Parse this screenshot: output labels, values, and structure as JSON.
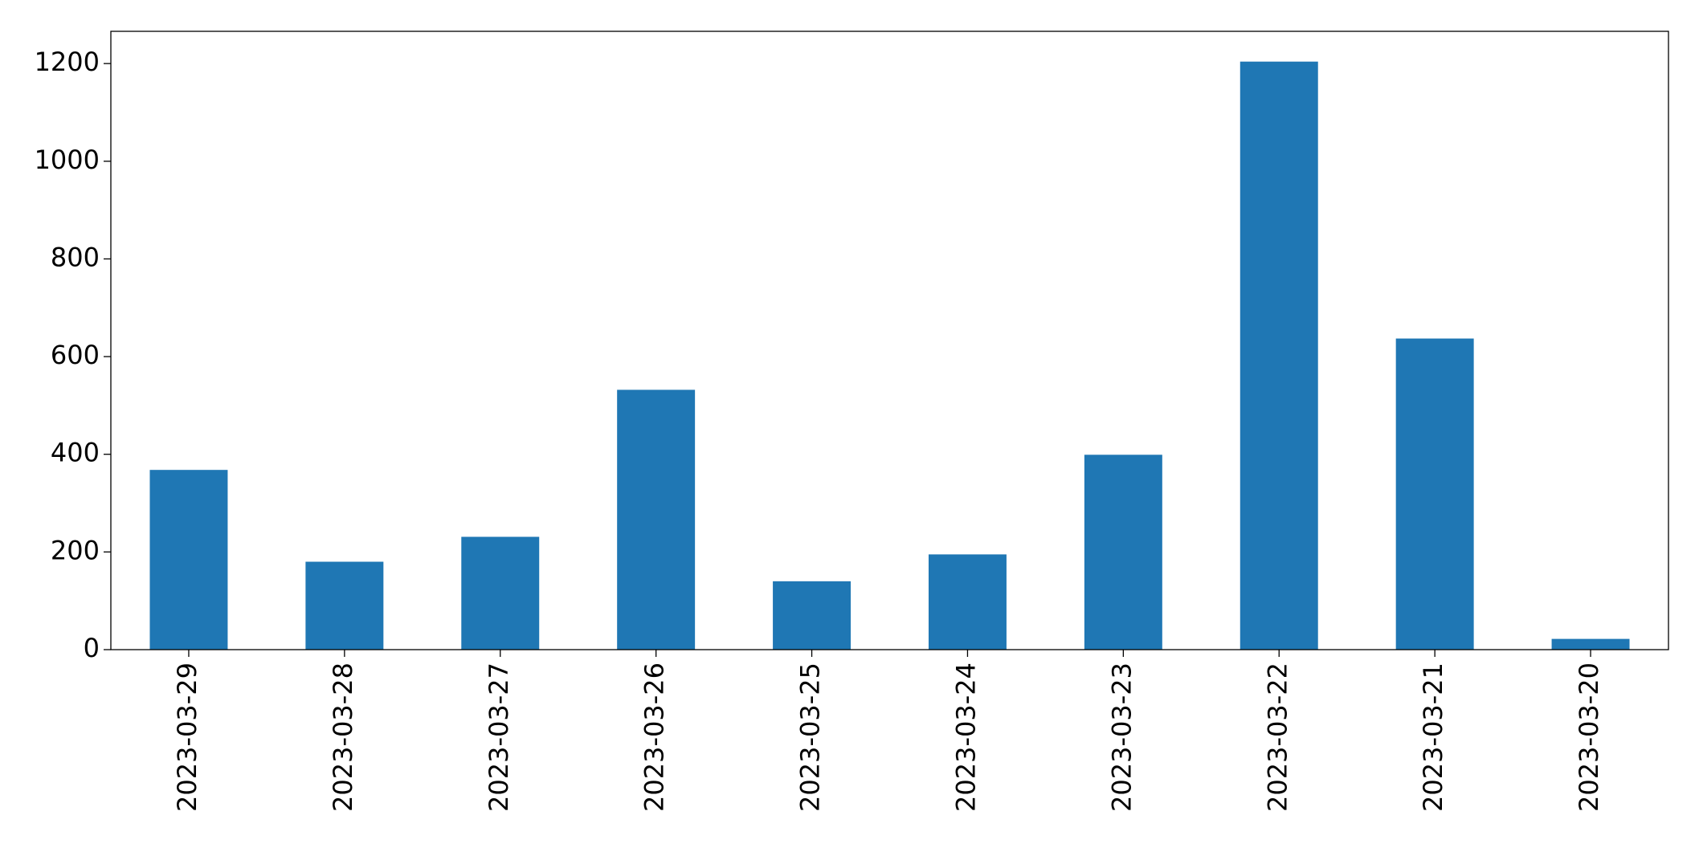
{
  "chart_data": {
    "type": "bar",
    "categories": [
      "2023-03-29",
      "2023-03-28",
      "2023-03-27",
      "2023-03-26",
      "2023-03-25",
      "2023-03-24",
      "2023-03-23",
      "2023-03-22",
      "2023-03-21",
      "2023-03-20"
    ],
    "values": [
      368,
      180,
      231,
      532,
      140,
      195,
      399,
      1204,
      637,
      22
    ],
    "color": "#1f77b4",
    "ylim": [
      0,
      1266
    ],
    "yticks": [
      0,
      200,
      400,
      600,
      800,
      1000,
      1200
    ],
    "grid": false
  }
}
